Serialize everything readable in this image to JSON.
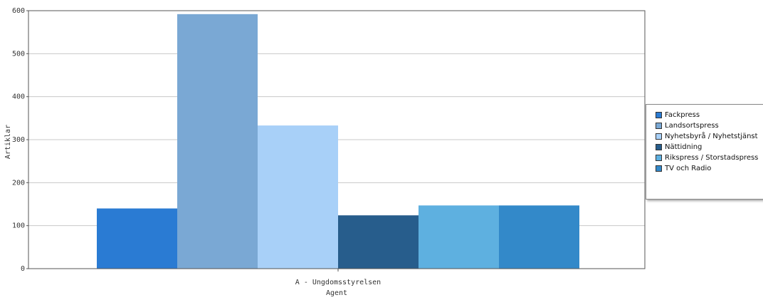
{
  "chart_data": {
    "type": "bar",
    "categories": [
      "A - Ungdomsstyrelsen"
    ],
    "xlabel": "Agent",
    "ylabel": "Artiklar",
    "ylim": [
      0,
      600
    ],
    "yticks": [
      0,
      100,
      200,
      300,
      400,
      500,
      600
    ],
    "grid": true,
    "legend_position": "right",
    "series": [
      {
        "name": "Fackpress",
        "values": [
          140
        ],
        "color": "#2a7bd3"
      },
      {
        "name": "Landsortspress",
        "values": [
          592
        ],
        "color": "#7aa8d4"
      },
      {
        "name": "Nyhetsbyrå / Nyhetstjänst",
        "values": [
          333
        ],
        "color": "#a8d0f8"
      },
      {
        "name": "Nättidning",
        "values": [
          124
        ],
        "color": "#275d8c"
      },
      {
        "name": "Rikspress / Storstadspress",
        "values": [
          147
        ],
        "color": "#5eb0e0"
      },
      {
        "name": "TV och Radio",
        "values": [
          147
        ],
        "color": "#3389c9"
      }
    ]
  }
}
